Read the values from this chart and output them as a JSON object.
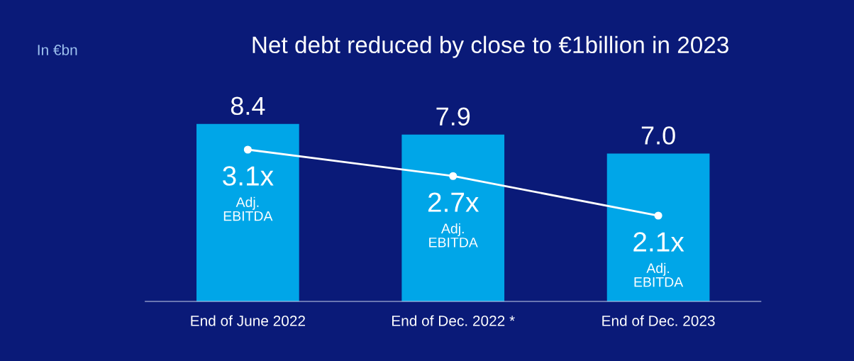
{
  "chart_data": {
    "type": "bar",
    "title": "Net debt reduced by close to €1billion in 2023",
    "annotations": [
      "In €bn"
    ],
    "categories": [
      "End of June 2022",
      "End of Dec. 2022 *",
      "End of Dec. 2023"
    ],
    "series": [
      {
        "color": "#00a6e8",
        "values": [
          8.4,
          7.9,
          7.0
        ],
        "value_labels": [
          "8.4",
          "7.9",
          "7.0"
        ]
      },
      {
        "type": "line",
        "axis": "y2",
        "color": "#ffffff",
        "values": [
          3.1,
          2.7,
          2.1
        ],
        "value_labels": [
          "3.1x\nAdj.\nEBITDA",
          "2.7x\nAdj.\nEBITDA",
          "2.1x\nAdj.\nEBITDA"
        ]
      }
    ],
    "tick_labels": "x",
    "marker": "circle",
    "line_style": "solid"
  }
}
